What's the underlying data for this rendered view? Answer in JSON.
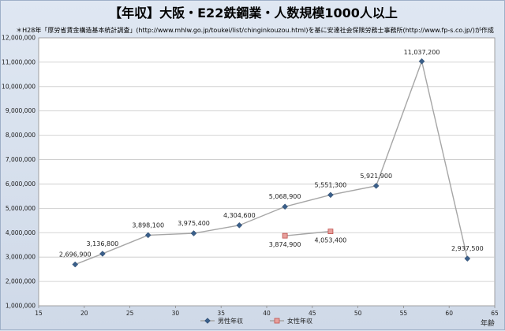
{
  "chart_data": {
    "type": "line",
    "title": "【年収】大阪・E22鉄鋼業・人数規模1000人以上",
    "subtitle": "＊H28年「厚労省賃金構造基本統計調査」(http://www.mhlw.go.jp/toukei/list/chinginkouzou.html)を基に安達社会保険労務士事務所(http://www.fp-s.co.jp/)が作成",
    "xlabel": "年齢",
    "ylabel": "",
    "xlim": [
      15,
      65
    ],
    "ylim": [
      1000000,
      12000000
    ],
    "x_ticks": [
      "15",
      "20",
      "25",
      "30",
      "35",
      "40",
      "45",
      "50",
      "55",
      "60",
      "65"
    ],
    "y_ticks": [
      "1,000,000",
      "2,000,000",
      "3,000,000",
      "4,000,000",
      "5,000,000",
      "6,000,000",
      "7,000,000",
      "8,000,000",
      "9,000,000",
      "10,000,000",
      "11,000,000",
      "12,000,000"
    ],
    "grid": true,
    "legend_position": "bottom",
    "series": [
      {
        "name": "男性年収",
        "color": "#a6a6a6",
        "marker_color": "#3a5f8a",
        "marker": "diamond",
        "x": [
          19,
          22,
          27,
          32,
          37,
          42,
          47,
          52,
          57,
          62
        ],
        "values": [
          2696900,
          3136800,
          3898100,
          3975400,
          4304600,
          5068900,
          5551300,
          5921900,
          11037200,
          2937500
        ],
        "labels": [
          "2,696,900",
          "3,136,800",
          "3,898,100",
          "3,975,400",
          "4,304,600",
          "5,068,900",
          "5,551,300",
          "5,921,900",
          "11,037,200",
          "2,937,500"
        ]
      },
      {
        "name": "女性年収",
        "color": "#a6a6a6",
        "marker_color": "#e7a09c",
        "marker": "square",
        "x": [
          42,
          47
        ],
        "values": [
          3874900,
          4053400
        ],
        "labels": [
          "3,874,900",
          "4,053,400"
        ]
      }
    ]
  }
}
